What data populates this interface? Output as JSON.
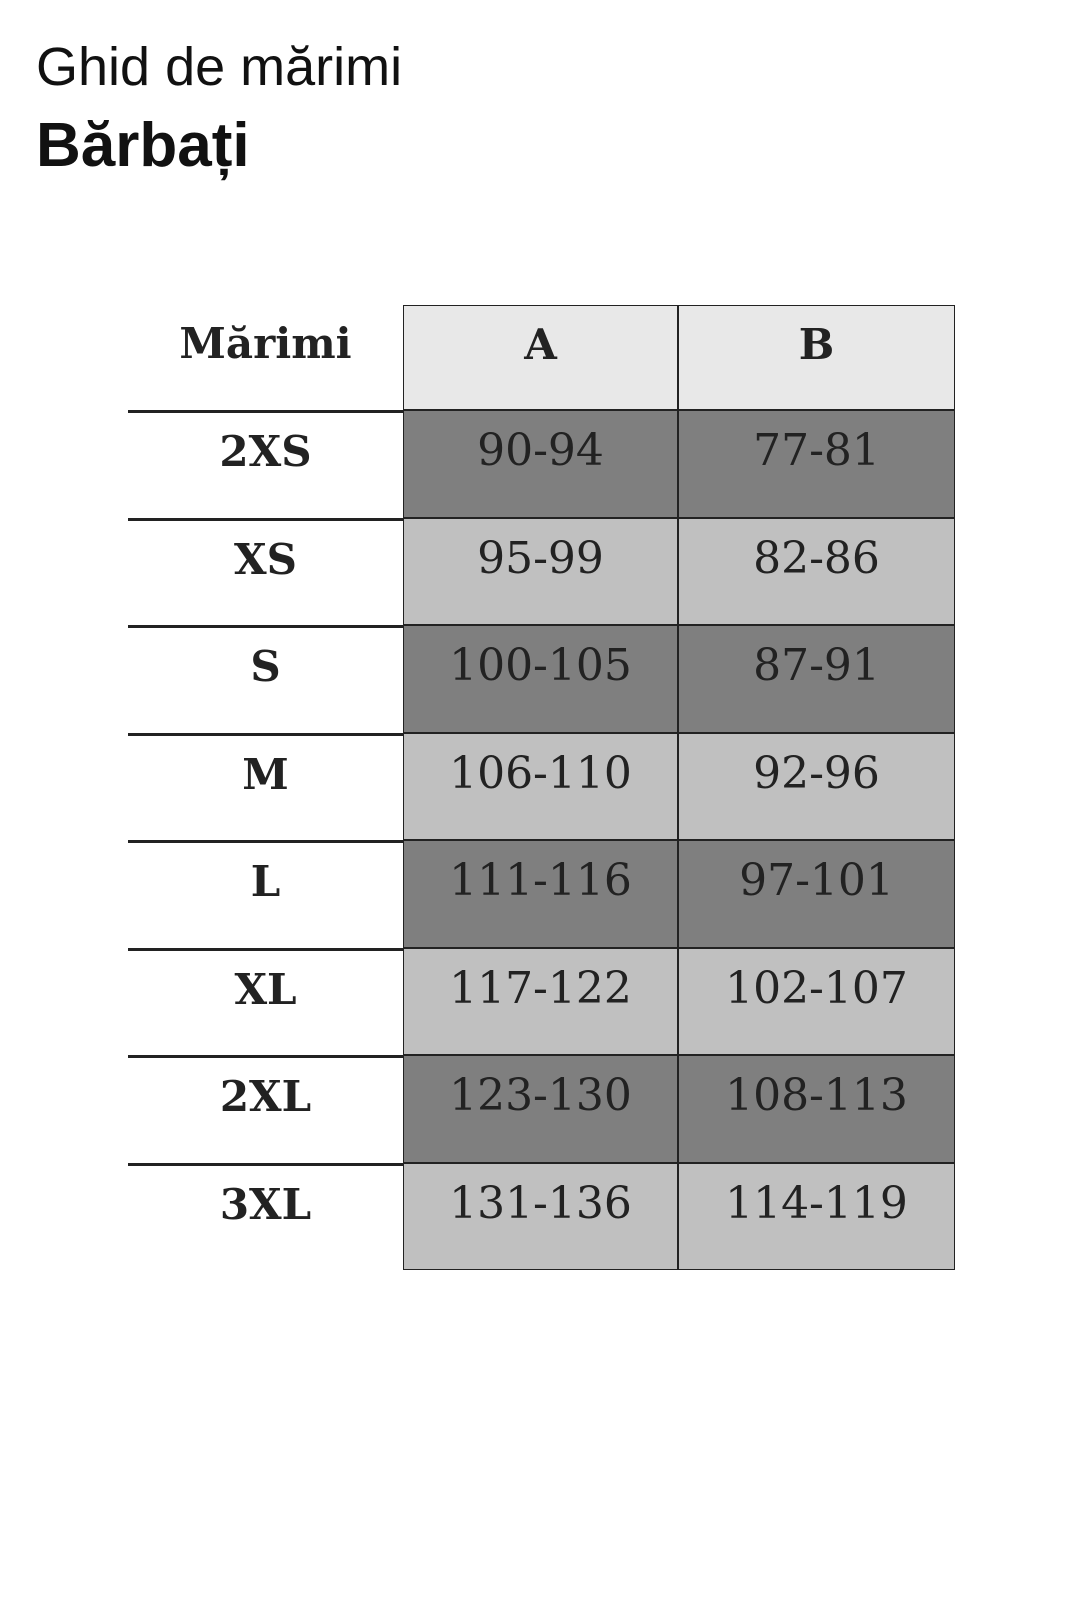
{
  "header": {
    "title": "Ghid de mărimi",
    "subtitle": "Bărbați"
  },
  "table": {
    "columns": [
      "Mărimi",
      "A",
      "B"
    ],
    "rows": [
      [
        "2XS",
        "90-94",
        "77-81"
      ],
      [
        "XS",
        "95-99",
        "82-86"
      ],
      [
        "S",
        "100-105",
        "87-91"
      ],
      [
        "M",
        "106-110",
        "92-96"
      ],
      [
        "L",
        "111-116",
        "97-101"
      ],
      [
        "XL",
        "117-122",
        "102-107"
      ],
      [
        "2XL",
        "123-130",
        "108-113"
      ],
      [
        "3XL",
        "131-136",
        "114-119"
      ]
    ]
  }
}
